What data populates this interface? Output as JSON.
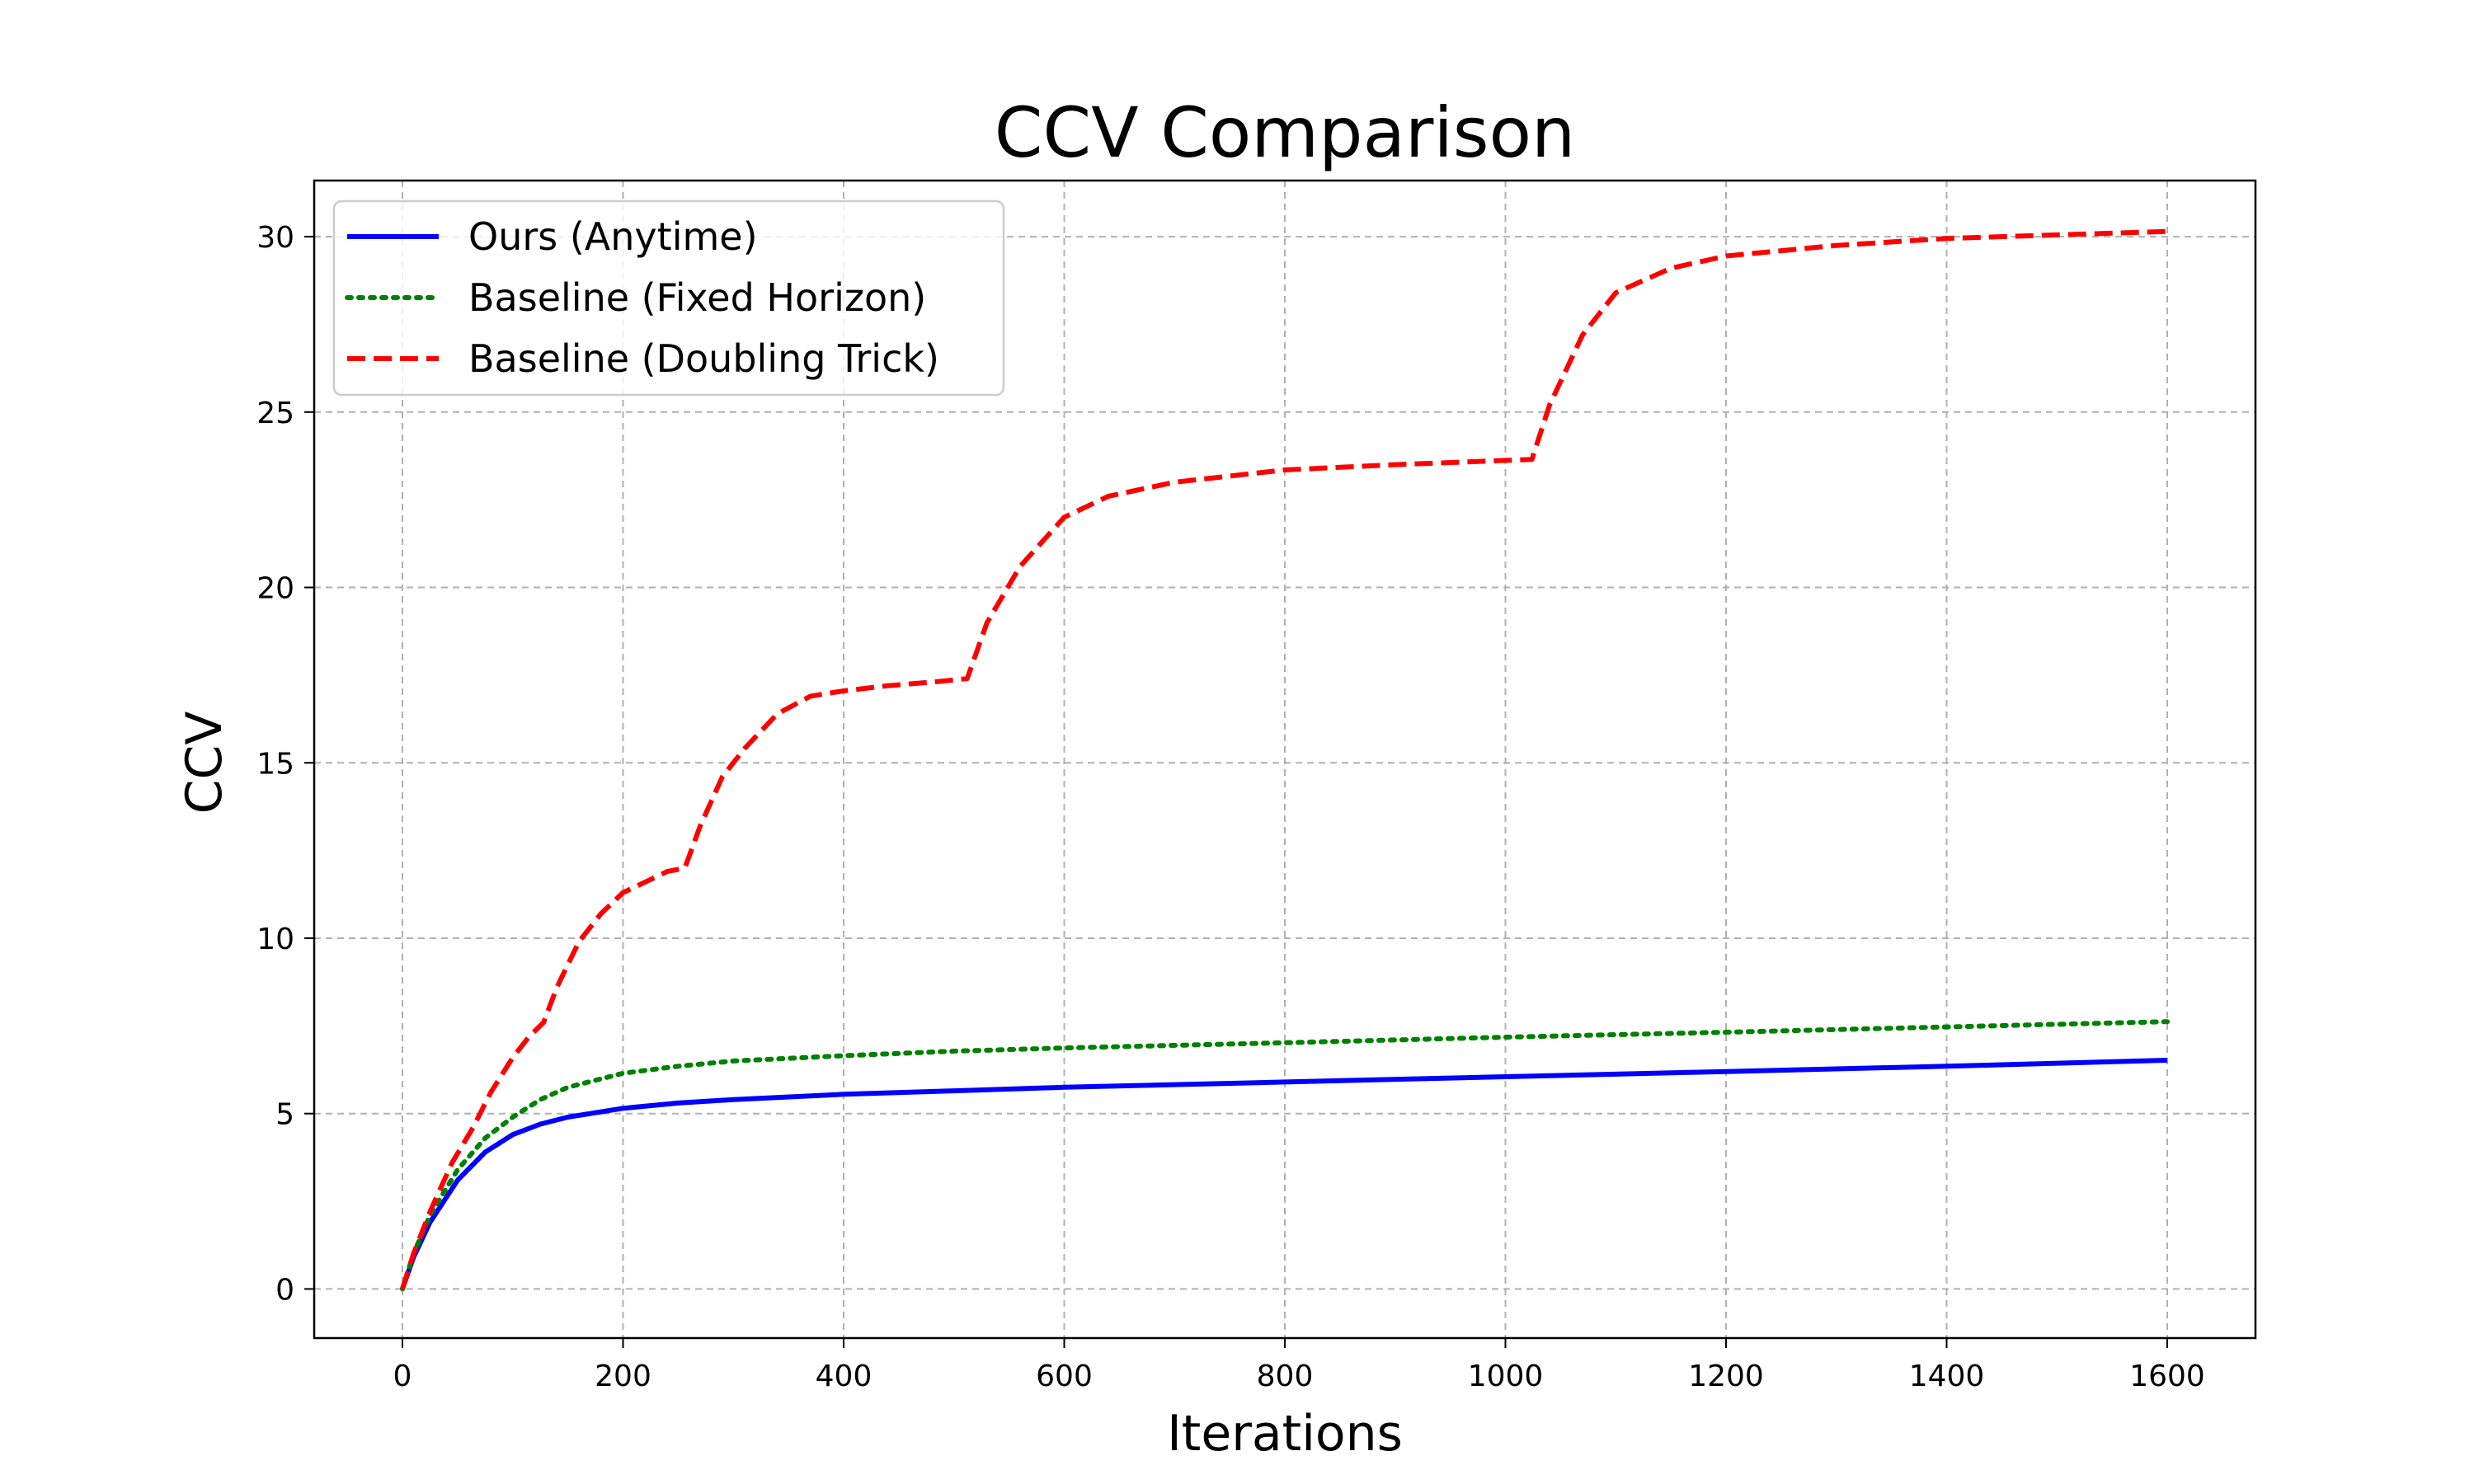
{
  "chart_data": {
    "type": "line",
    "title": "CCV Comparison",
    "xlabel": "Iterations",
    "ylabel": "CCV",
    "xlim": [
      -80,
      1680
    ],
    "ylim": [
      -1.4,
      31.6
    ],
    "xticks": [
      0,
      200,
      400,
      600,
      800,
      1000,
      1200,
      1400,
      1600
    ],
    "yticks": [
      0,
      5,
      10,
      15,
      20,
      25,
      30
    ],
    "grid": true,
    "legend_position": "top-left",
    "series": [
      {
        "name": "Ours (Anytime)",
        "color": "#0000ff",
        "style": "solid",
        "x": [
          0,
          10,
          25,
          50,
          75,
          100,
          125,
          150,
          200,
          250,
          300,
          400,
          500,
          600,
          800,
          1000,
          1200,
          1400,
          1600
        ],
        "y": [
          0,
          0.9,
          1.9,
          3.1,
          3.9,
          4.4,
          4.7,
          4.9,
          5.15,
          5.3,
          5.4,
          5.55,
          5.65,
          5.75,
          5.9,
          6.05,
          6.2,
          6.35,
          6.52
        ]
      },
      {
        "name": "Baseline (Fixed Horizon)",
        "color": "#008000",
        "style": "dotted",
        "x": [
          0,
          10,
          25,
          50,
          75,
          100,
          125,
          150,
          200,
          250,
          300,
          400,
          500,
          600,
          800,
          1000,
          1200,
          1400,
          1600
        ],
        "y": [
          0,
          1.0,
          2.1,
          3.4,
          4.3,
          4.9,
          5.4,
          5.75,
          6.15,
          6.35,
          6.5,
          6.65,
          6.78,
          6.87,
          7.02,
          7.18,
          7.32,
          7.47,
          7.62
        ]
      },
      {
        "name": "Baseline (Doubling Trick)",
        "color": "#ff0000",
        "style": "dashed",
        "x": [
          0,
          10,
          25,
          45,
          64,
          80,
          100,
          115,
          128,
          140,
          160,
          180,
          200,
          220,
          240,
          256,
          270,
          290,
          310,
          340,
          370,
          400,
          440,
          480,
          512,
          530,
          560,
          600,
          640,
          700,
          800,
          900,
          1024,
          1040,
          1070,
          1100,
          1150,
          1200,
          1300,
          1400,
          1500,
          1600
        ],
        "y": [
          0,
          1.0,
          2.2,
          3.6,
          4.6,
          5.6,
          6.6,
          7.2,
          7.6,
          8.6,
          9.9,
          10.7,
          11.3,
          11.6,
          11.9,
          12.0,
          13.2,
          14.6,
          15.4,
          16.4,
          16.9,
          17.05,
          17.2,
          17.3,
          17.4,
          19.0,
          20.6,
          22.0,
          22.6,
          23.0,
          23.35,
          23.5,
          23.65,
          25.2,
          27.2,
          28.4,
          29.1,
          29.45,
          29.75,
          29.95,
          30.05,
          30.15
        ]
      }
    ]
  }
}
